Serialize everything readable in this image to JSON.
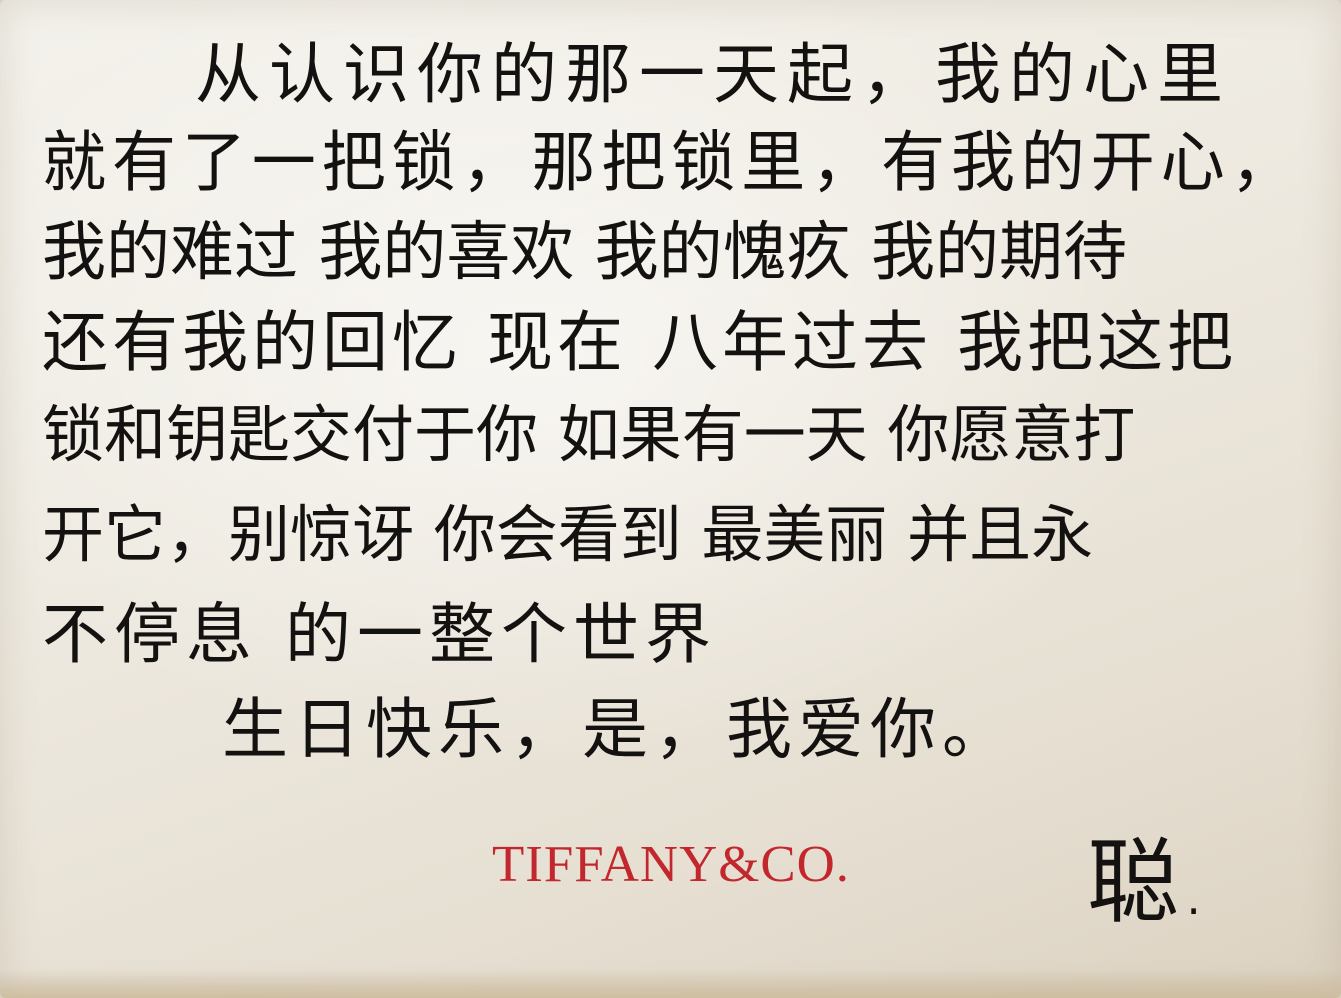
{
  "letter": {
    "lines": [
      "从认识你的那一天起，我的心里",
      "就有了一把锁，那把锁里，有我的开心，",
      "我的难过 我的喜欢 我的愧疚 我的期待",
      "还有我的回忆 现在 八年过去 我把这把",
      "锁和钥匙交付于你 如果有一天 你愿意打",
      "开它，别惊讶 你会看到 最美丽 并且永",
      "不停息 的一整个世界",
      "生日快乐，是，我爱你。"
    ],
    "signature": "聪."
  },
  "brand": {
    "logo_text": "TIFFANY&CO.",
    "color": "#c1272d"
  },
  "colors": {
    "paper": "#efece4",
    "ink": "#141210"
  }
}
